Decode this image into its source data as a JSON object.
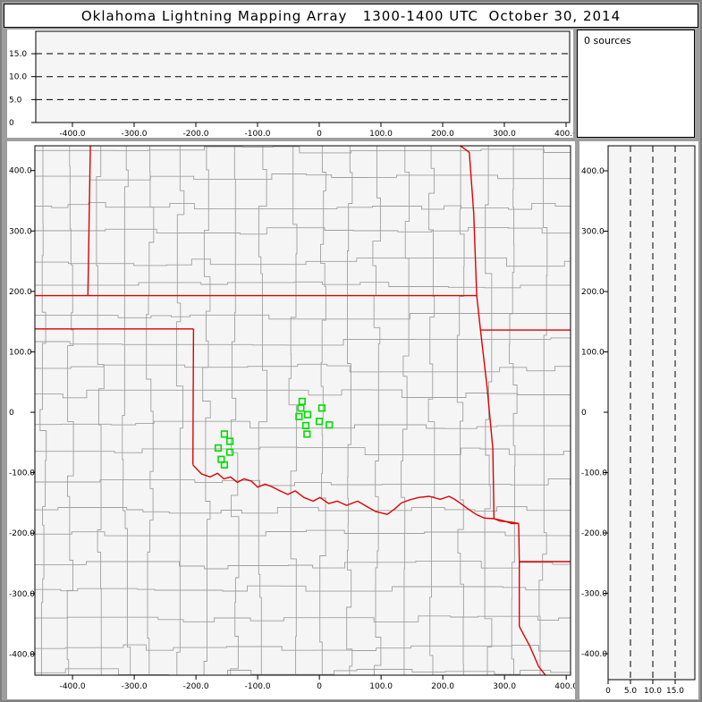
{
  "window": {
    "title": "Oklahoma Lightning Mapping Array   1300-1400 UTC  October 30, 2014"
  },
  "status_panel": {
    "label": "0 sources"
  },
  "colors": {
    "chrome": "#9e9e9e",
    "frame_edge": "#808080",
    "panel_bg": "#ffffff",
    "plot_bg": "#f5f5f5",
    "axis": "#000000",
    "county_line": "#a0a0a0",
    "state_line": "#e00000",
    "station": "#00dc00",
    "dashed_line": "#000000"
  },
  "axes": {
    "ew_km": [
      -400,
      -300,
      -200,
      -100,
      0,
      100,
      200,
      300,
      400
    ],
    "ew_labels": [
      "-400.0",
      "-300.0",
      "-200.0",
      "-100.0",
      "0",
      "100.0",
      "200.0",
      "300.0",
      "400.0"
    ],
    "ns_km": [
      400,
      300,
      200,
      100,
      0,
      -100,
      -200,
      -300,
      -400
    ],
    "ns_labels": [
      "400.0",
      "300.0",
      "200.0",
      "100.0",
      "0",
      "-100.0",
      "-200.0",
      "-300.0",
      "-400.0"
    ],
    "alt_km": [
      0,
      5,
      10,
      15
    ],
    "alt_labels_bottom": [
      "0",
      "5.0",
      "10.0",
      "15.0"
    ],
    "alt_labels_left": [
      "15.0",
      "10.0",
      "5.0",
      "0"
    ],
    "dashed_alt_km": [
      5,
      10,
      15
    ]
  },
  "chart_data": [
    {
      "id": "altitude-vs-eastwest",
      "type": "scatter",
      "points": [],
      "xlim": [
        -459,
        406
      ],
      "ylim": [
        0,
        20
      ],
      "x_tick_labels": [
        "-400.0",
        "-300.0",
        "-200.0",
        "-100.0",
        "0",
        "100.0",
        "200.0",
        "300.0",
        "400.0"
      ],
      "y_tick_labels": [
        "15.0",
        "10.0",
        "5.0",
        "0"
      ],
      "gridlines": "dashed horizontal at 5, 10, 15 km altitude",
      "legend_position": "none"
    },
    {
      "id": "plan-view-map",
      "type": "scatter",
      "xlim": [
        -461,
        407
      ],
      "ylim": [
        -435,
        441
      ],
      "x_tick_labels": [
        "-400.0",
        "-300.0",
        "-200.0",
        "-100.0",
        "0",
        "100.0",
        "200.0",
        "300.0",
        "400.0"
      ],
      "y_tick_labels": [
        "400.0",
        "300.0",
        "200.0",
        "100.0",
        "0",
        "-100.0",
        "-200.0",
        "-300.0",
        "-400.0"
      ],
      "marker": "open-green-square",
      "stations_km": [
        [
          -28,
          18
        ],
        [
          -30,
          7
        ],
        [
          4,
          7
        ],
        [
          -33,
          -7
        ],
        [
          -19,
          -4
        ],
        [
          -22,
          -22
        ],
        [
          0,
          -15
        ],
        [
          16,
          -21
        ],
        [
          -20,
          -36
        ],
        [
          -154,
          -36
        ],
        [
          -145,
          -48
        ],
        [
          -164,
          -59
        ],
        [
          -145,
          -66
        ],
        [
          -159,
          -78
        ],
        [
          -154,
          -87
        ]
      ],
      "state_borders_km": [
        {
          "name": "co-ks-line",
          "pts": [
            [
              -371,
              446
            ],
            [
              -375,
              194
            ]
          ]
        },
        {
          "name": "north-37n-line",
          "pts": [
            [
              -467,
              193
            ],
            [
              255,
              193
            ]
          ]
        },
        {
          "name": "ks-mo-line",
          "pts": [
            [
              222,
              446
            ],
            [
              243,
              430
            ],
            [
              250,
              330
            ],
            [
              255,
              193
            ],
            [
              261,
              136
            ]
          ]
        },
        {
          "name": "mo-ar-line",
          "pts": [
            [
              261,
              136
            ],
            [
              412,
              136
            ]
          ]
        },
        {
          "name": "ok-ar-line",
          "pts": [
            [
              261,
              136
            ],
            [
              272,
              40
            ],
            [
              281,
              -60
            ],
            [
              283,
              -176
            ],
            [
              293,
              -180
            ],
            [
              312,
              -182
            ],
            [
              323,
              -184
            ]
          ]
        },
        {
          "name": "panhandle-south-line",
          "pts": [
            [
              -467,
              138
            ],
            [
              -204,
              138
            ]
          ]
        },
        {
          "name": "ok-tx-100w-line",
          "pts": [
            [
              -204,
              138
            ],
            [
              -205,
              -87
            ]
          ]
        },
        {
          "name": "red-river",
          "pts": [
            [
              -205,
              -87
            ],
            [
              -191,
              -102
            ],
            [
              -177,
              -107
            ],
            [
              -165,
              -101
            ],
            [
              -155,
              -110
            ],
            [
              -144,
              -107
            ],
            [
              -133,
              -116
            ],
            [
              -122,
              -110
            ],
            [
              -110,
              -114
            ],
            [
              -100,
              -124
            ],
            [
              -88,
              -119
            ],
            [
              -77,
              -123
            ],
            [
              -64,
              -130
            ],
            [
              -51,
              -136
            ],
            [
              -39,
              -130
            ],
            [
              -25,
              -141
            ],
            [
              -10,
              -147
            ],
            [
              1,
              -141
            ],
            [
              15,
              -151
            ],
            [
              29,
              -147
            ],
            [
              44,
              -154
            ],
            [
              62,
              -147
            ],
            [
              77,
              -156
            ],
            [
              91,
              -164
            ],
            [
              110,
              -169
            ],
            [
              122,
              -160
            ],
            [
              133,
              -150
            ],
            [
              146,
              -145
            ],
            [
              161,
              -141
            ],
            [
              178,
              -139
            ],
            [
              196,
              -144
            ],
            [
              210,
              -139
            ],
            [
              219,
              -144
            ],
            [
              229,
              -151
            ],
            [
              241,
              -160
            ],
            [
              254,
              -169
            ],
            [
              267,
              -175
            ],
            [
              283,
              -176
            ],
            [
              297,
              -179
            ],
            [
              312,
              -184
            ],
            [
              323,
              -184
            ]
          ]
        },
        {
          "name": "tx-ar-la-line",
          "pts": [
            [
              323,
              -184
            ],
            [
              324,
              -244
            ],
            [
              324,
              -354
            ],
            [
              330,
              -366
            ],
            [
              341,
              -387
            ],
            [
              355,
              -420
            ],
            [
              367,
              -436
            ]
          ]
        },
        {
          "name": "ar-la-33n-line",
          "pts": [
            [
              324,
              -247
            ],
            [
              412,
              -247
            ]
          ]
        }
      ],
      "county_texture": {
        "seed": 1030,
        "row_step_km": [
          38,
          52
        ],
        "cell_step_km": [
          26,
          62
        ],
        "jog_km": 7
      }
    },
    {
      "id": "altitude-vs-northsouth",
      "type": "scatter",
      "points": [],
      "xlim": [
        0,
        19.4
      ],
      "ylim": [
        -443,
        441
      ],
      "x_tick_labels": [
        "0",
        "5.0",
        "10.0",
        "15.0"
      ],
      "y_tick_labels": [
        "400.0",
        "300.0",
        "200.0",
        "100.0",
        "0",
        "-100.0",
        "-200.0",
        "-300.0",
        "-400.0"
      ],
      "gridlines": "dashed vertical at 5, 10, 15 km altitude",
      "legend_position": "none"
    }
  ]
}
